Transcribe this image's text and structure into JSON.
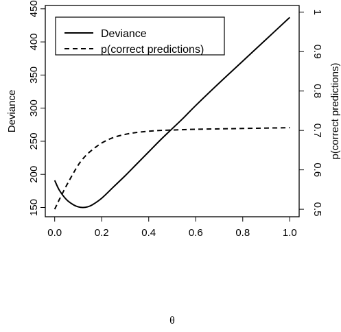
{
  "chart_data": {
    "type": "line",
    "xlabel": "θ",
    "ylabel_left": "Deviance",
    "ylabel_right": "p(correct predictions)",
    "xlim": [
      -0.04,
      1.04
    ],
    "ylim_left": [
      136,
      455
    ],
    "ylim_right": [
      0.481,
      1.017
    ],
    "x_ticks": [
      "0.0",
      "0.2",
      "0.4",
      "0.6",
      "0.8",
      "1.0"
    ],
    "y_left_ticks": [
      "150",
      "200",
      "250",
      "300",
      "350",
      "400",
      "450"
    ],
    "y_right_ticks": [
      "0.5",
      "0.6",
      "0.7",
      "0.8",
      "0.9",
      "1"
    ],
    "legend": {
      "position": "top-left",
      "entries": [
        {
          "label": "Deviance",
          "style": "solid"
        },
        {
          "label": "p(correct predictions)",
          "style": "dashed"
        }
      ]
    },
    "series": [
      {
        "name": "Deviance",
        "axis": "left",
        "style": "solid",
        "x": [
          0.0,
          0.02,
          0.05,
          0.08,
          0.1,
          0.12,
          0.14,
          0.16,
          0.2,
          0.25,
          0.3,
          0.35,
          0.4,
          0.45,
          0.5,
          0.55,
          0.6,
          0.7,
          0.8,
          0.9,
          1.0
        ],
        "values": [
          191,
          176,
          162,
          154,
          151,
          150,
          151,
          154,
          164,
          181,
          198,
          216,
          234,
          252,
          269,
          286,
          304,
          338,
          371,
          404,
          437
        ]
      },
      {
        "name": "p(correct predictions)",
        "axis": "right",
        "style": "dashed",
        "x": [
          0.0,
          0.02,
          0.05,
          0.08,
          0.1,
          0.12,
          0.15,
          0.2,
          0.25,
          0.3,
          0.35,
          0.4,
          0.45,
          0.5,
          0.55,
          0.6,
          0.7,
          0.8,
          0.9,
          1.0
        ],
        "values": [
          0.5,
          0.525,
          0.56,
          0.592,
          0.612,
          0.628,
          0.646,
          0.668,
          0.682,
          0.69,
          0.695,
          0.698,
          0.7,
          0.701,
          0.702,
          0.703,
          0.704,
          0.705,
          0.706,
          0.707
        ]
      }
    ],
    "grid": false
  }
}
